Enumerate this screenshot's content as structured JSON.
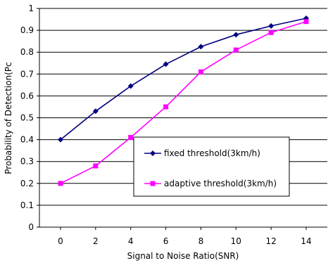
{
  "chart_data": {
    "type": "line",
    "xlabel": "Signal to Noise Ratio(SNR)",
    "ylabel": "Probability of Detection(Pc",
    "x": [
      0,
      2,
      4,
      6,
      8,
      10,
      12,
      14
    ],
    "x_ticks": [
      "0",
      "2",
      "4",
      "6",
      "8",
      "10",
      "12",
      "14"
    ],
    "ylim": [
      0,
      1
    ],
    "y_ticks": [
      "0",
      "0.1",
      "0.2",
      "0.3",
      "0.4",
      "0.5",
      "0.6",
      "0.7",
      "0.8",
      "0.9",
      "1"
    ],
    "grid": "horizontal",
    "legend_position": "lower-right inside plot",
    "series": [
      {
        "name": "fixed threshold(3km/h)",
        "color": "#000080",
        "marker": "diamond",
        "values": [
          0.4,
          0.53,
          0.645,
          0.745,
          0.825,
          0.88,
          0.92,
          0.955
        ]
      },
      {
        "name": "adaptive threshold(3km/h)",
        "color": "#ff00ff",
        "marker": "square",
        "values": [
          0.2,
          0.28,
          0.41,
          0.55,
          0.71,
          0.81,
          0.89,
          0.94
        ]
      }
    ]
  }
}
